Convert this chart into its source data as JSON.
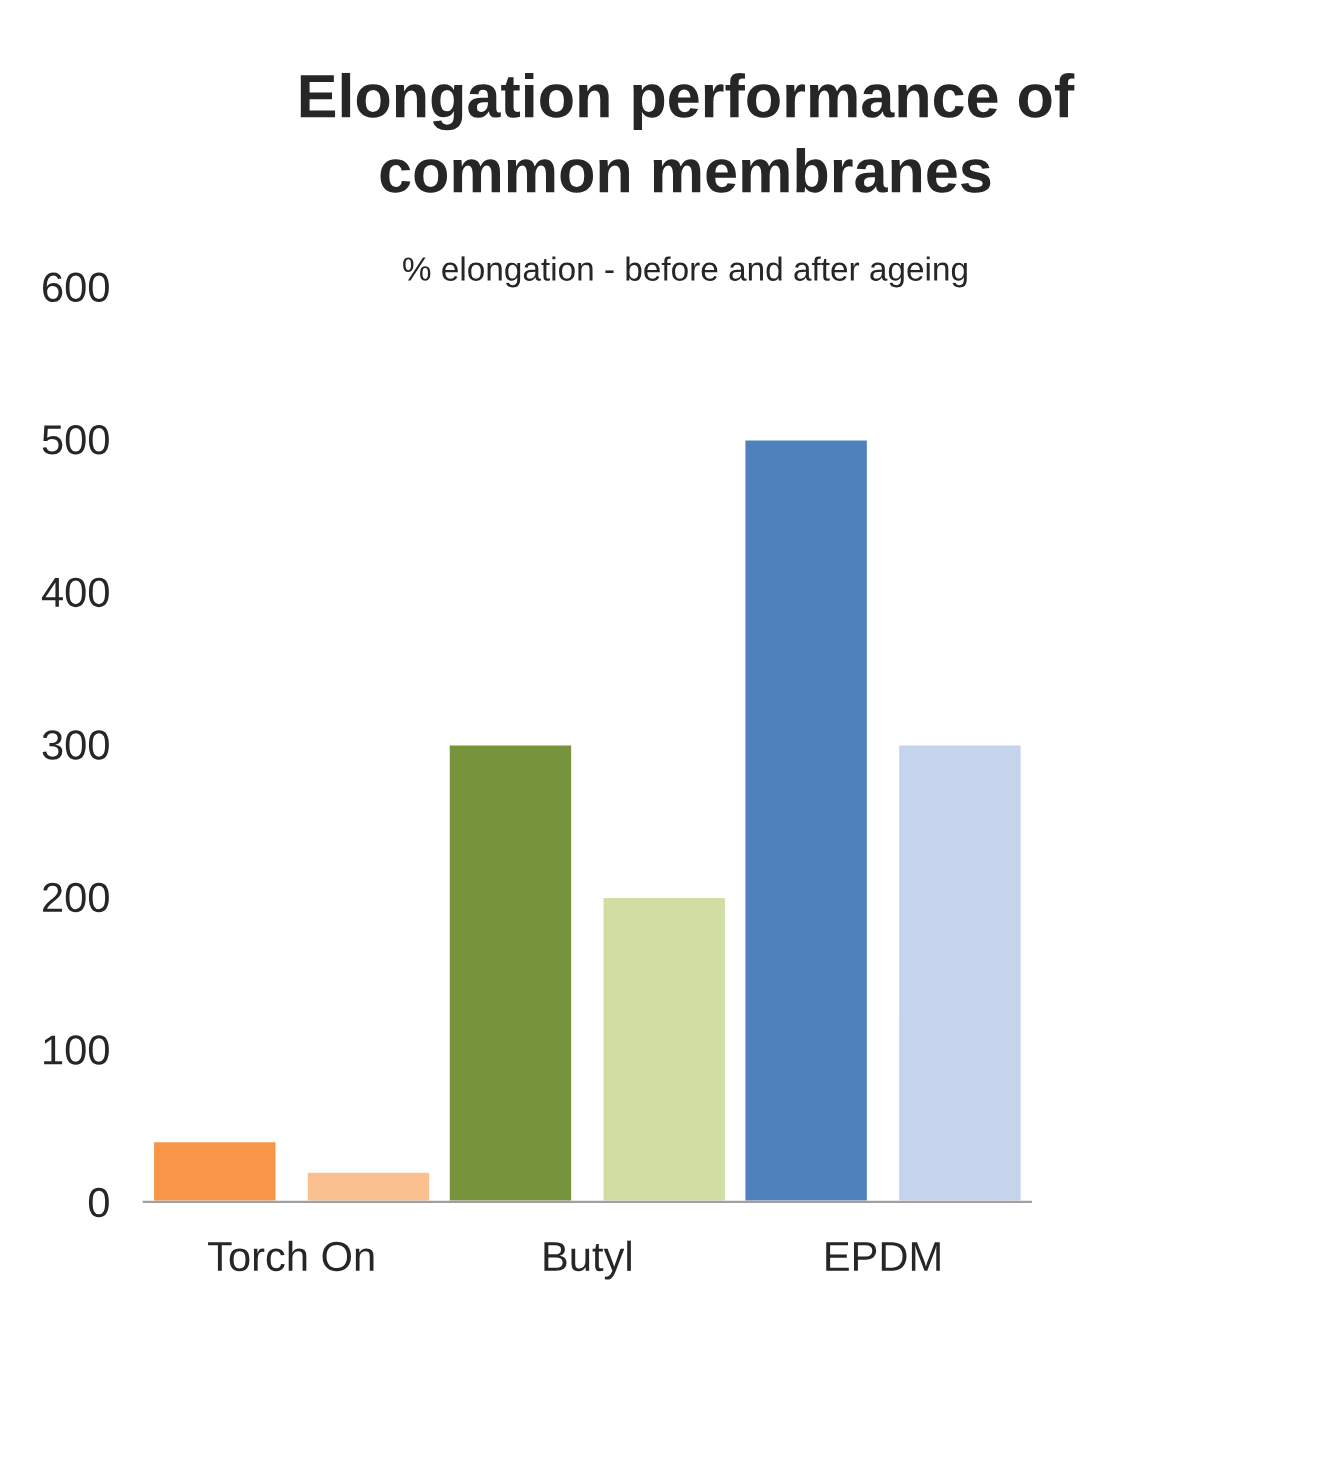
{
  "chart_data": {
    "type": "bar",
    "title": "Elongation performance of\ncommon membranes",
    "subtitle": "% elongation - before and after ageing",
    "categories": [
      "Torch On",
      "Butyl",
      "EPDM"
    ],
    "series": [
      {
        "colors": [
          "#f79646",
          "#77933c",
          "#4f81bd"
        ],
        "values": [
          40,
          300,
          500
        ]
      },
      {
        "colors": [
          "#fac090",
          "#d1dea3",
          "#c6d3ec"
        ],
        "values": [
          20,
          200,
          300
        ]
      }
    ],
    "ylim": [
      0,
      600
    ],
    "yticks": [
      0,
      100,
      200,
      300,
      400,
      500,
      600
    ],
    "grid": false
  }
}
